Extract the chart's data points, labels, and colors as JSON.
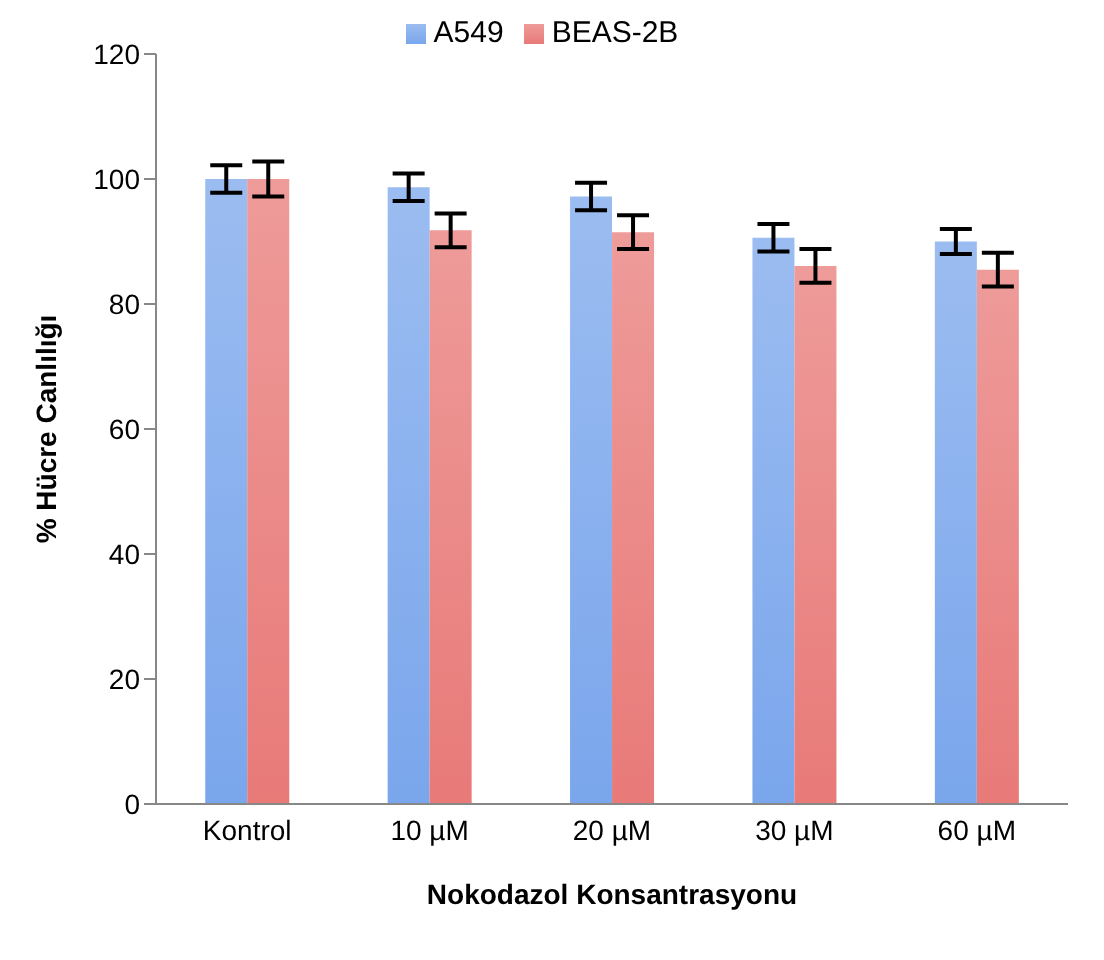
{
  "chart_data": {
    "type": "bar",
    "xlabel": "Nokodazol Konsantrasyonu",
    "ylabel": "% Hücre Canlılığı",
    "categories": [
      "Kontrol",
      "10 µM",
      "20 µM",
      "30 µM",
      "60 µM"
    ],
    "series": [
      {
        "name": "A549",
        "color": "#7aa6ec",
        "values": [
          100,
          98.7,
          97.2,
          90.6,
          90
        ],
        "errors": [
          2.2,
          2.2,
          2.2,
          2.2,
          2
        ]
      },
      {
        "name": "BEAS-2B",
        "color": "#e87a78",
        "values": [
          100,
          91.8,
          91.5,
          86.1,
          85.5
        ],
        "errors": [
          2.8,
          2.7,
          2.7,
          2.7,
          2.7
        ]
      }
    ],
    "ylim": [
      0,
      120
    ],
    "yticks": [
      0,
      20,
      40,
      60,
      80,
      100,
      120
    ],
    "grid": false,
    "legend": "top"
  }
}
